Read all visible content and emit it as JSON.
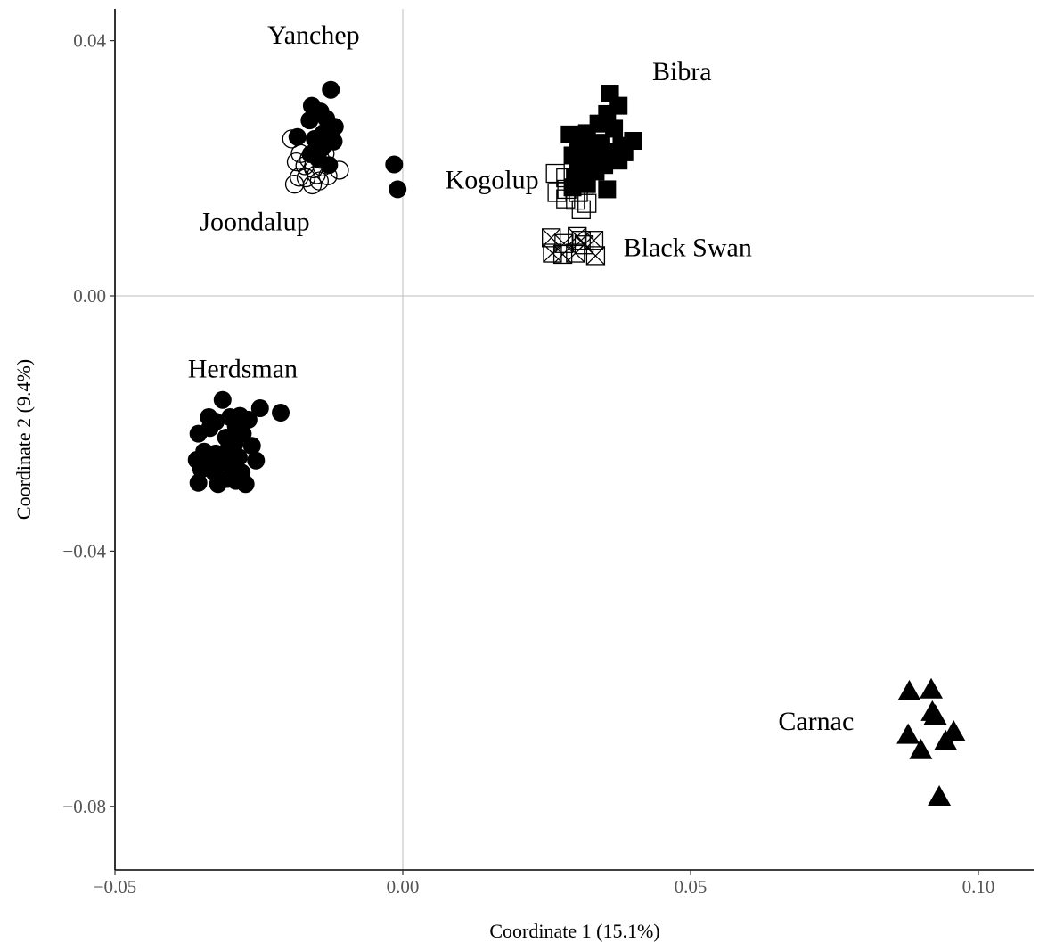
{
  "chart_data": {
    "type": "scatter",
    "title": "",
    "xlabel": "Coordinate 1 (15.1%)",
    "ylabel": "Coordinate 2 (9.4%)",
    "xlim": [
      -0.05,
      0.11
    ],
    "ylim": [
      -0.09,
      0.045
    ],
    "x_ticks": [
      -0.05,
      0.0,
      0.05,
      0.1
    ],
    "x_tick_labels": [
      "−0.05",
      "0.00",
      "0.05",
      "0.10"
    ],
    "y_ticks": [
      0.04,
      0.0,
      -0.04,
      -0.08
    ],
    "y_tick_labels": [
      "0.04",
      "0.00",
      "−0.04",
      "−0.08"
    ],
    "reference_lines": {
      "x": 0.0,
      "y": 0.0,
      "color": "#bdbdbd"
    },
    "grid": false,
    "legend": "none",
    "series": [
      {
        "name": "Yanchep",
        "marker": "filled-circle",
        "points": [
          [
            -0.0125,
            0.0323
          ],
          [
            -0.0158,
            0.0298
          ],
          [
            -0.0143,
            0.0289
          ],
          [
            -0.0162,
            0.0275
          ],
          [
            -0.0133,
            0.0278
          ],
          [
            -0.0118,
            0.0265
          ],
          [
            -0.0138,
            0.0255
          ],
          [
            -0.0153,
            0.0246
          ],
          [
            -0.0183,
            0.0249
          ],
          [
            -0.012,
            0.0242
          ],
          [
            -0.014,
            0.0232
          ],
          [
            -0.016,
            0.0222
          ],
          [
            -0.0128,
            0.0205
          ],
          [
            -0.0147,
            0.0215
          ],
          [
            -0.0015,
            0.0206
          ],
          [
            -0.0009,
            0.0167
          ]
        ]
      },
      {
        "name": "Joondalup",
        "marker": "open-circle",
        "points": [
          [
            -0.0193,
            0.0246
          ],
          [
            -0.0178,
            0.0223
          ],
          [
            -0.0163,
            0.0214
          ],
          [
            -0.015,
            0.0229
          ],
          [
            -0.0143,
            0.0214
          ],
          [
            -0.0185,
            0.021
          ],
          [
            -0.017,
            0.0204
          ],
          [
            -0.0155,
            0.0199
          ],
          [
            -0.014,
            0.0202
          ],
          [
            -0.011,
            0.0197
          ],
          [
            -0.018,
            0.0186
          ],
          [
            -0.0168,
            0.0185
          ],
          [
            -0.015,
            0.019
          ],
          [
            -0.013,
            0.0188
          ],
          [
            -0.0188,
            0.0175
          ],
          [
            -0.0157,
            0.0174
          ],
          [
            -0.0145,
            0.018
          ],
          [
            -0.0135,
            0.0223
          ]
        ]
      },
      {
        "name": "Herdsman",
        "marker": "filled-circle",
        "points": [
          [
            -0.0313,
            -0.0163
          ],
          [
            -0.0248,
            -0.0176
          ],
          [
            -0.0212,
            -0.0183
          ],
          [
            -0.0337,
            -0.019
          ],
          [
            -0.0325,
            -0.0197
          ],
          [
            -0.0283,
            -0.0188
          ],
          [
            -0.03,
            -0.019
          ],
          [
            -0.0268,
            -0.0194
          ],
          [
            -0.029,
            -0.0204
          ],
          [
            -0.0355,
            -0.0216
          ],
          [
            -0.0335,
            -0.0207
          ],
          [
            -0.0307,
            -0.0222
          ],
          [
            -0.0278,
            -0.0216
          ],
          [
            -0.0262,
            -0.0235
          ],
          [
            -0.0292,
            -0.0232
          ],
          [
            -0.0325,
            -0.0247
          ],
          [
            -0.0345,
            -0.0244
          ],
          [
            -0.0305,
            -0.0243
          ],
          [
            -0.0285,
            -0.0253
          ],
          [
            -0.0358,
            -0.0257
          ],
          [
            -0.0338,
            -0.0266
          ],
          [
            -0.0316,
            -0.0261
          ],
          [
            -0.0295,
            -0.0268
          ],
          [
            -0.0327,
            -0.0277
          ],
          [
            -0.035,
            -0.0272
          ],
          [
            -0.0305,
            -0.0287
          ],
          [
            -0.028,
            -0.0277
          ],
          [
            -0.0255,
            -0.0258
          ],
          [
            -0.0273,
            -0.0295
          ],
          [
            -0.0321,
            -0.0295
          ],
          [
            -0.0355,
            -0.0293
          ],
          [
            -0.029,
            -0.029
          ]
        ]
      },
      {
        "name": "Bibra",
        "marker": "filled-square",
        "points": [
          [
            0.036,
            0.0317
          ],
          [
            0.0375,
            0.0298
          ],
          [
            0.0355,
            0.0285
          ],
          [
            0.034,
            0.027
          ],
          [
            0.0367,
            0.0262
          ],
          [
            0.032,
            0.0255
          ],
          [
            0.029,
            0.0253
          ],
          [
            0.0305,
            0.0245
          ],
          [
            0.0345,
            0.024
          ],
          [
            0.038,
            0.0235
          ],
          [
            0.04,
            0.0243
          ],
          [
            0.033,
            0.023
          ],
          [
            0.031,
            0.0225
          ],
          [
            0.036,
            0.0225
          ],
          [
            0.0385,
            0.0225
          ],
          [
            0.0295,
            0.022
          ],
          [
            0.0325,
            0.0212
          ],
          [
            0.035,
            0.0205
          ],
          [
            0.0375,
            0.0212
          ],
          [
            0.0305,
            0.02
          ],
          [
            0.0335,
            0.0195
          ],
          [
            0.03,
            0.0185
          ],
          [
            0.032,
            0.0175
          ],
          [
            0.0295,
            0.017
          ],
          [
            0.0355,
            0.0167
          ]
        ]
      },
      {
        "name": "Kogolup",
        "marker": "open-square",
        "points": [
          [
            0.0265,
            0.0192
          ],
          [
            0.0283,
            0.0185
          ],
          [
            0.03,
            0.0186
          ],
          [
            0.0268,
            0.0162
          ],
          [
            0.0285,
            0.0167
          ],
          [
            0.0305,
            0.0162
          ],
          [
            0.0315,
            0.0173
          ],
          [
            0.0283,
            0.0152
          ],
          [
            0.03,
            0.015
          ],
          [
            0.032,
            0.0145
          ],
          [
            0.031,
            0.0135
          ]
        ]
      },
      {
        "name": "Black Swan",
        "marker": "crossed-square",
        "points": [
          [
            0.0258,
            0.0091
          ],
          [
            0.0303,
            0.0093
          ],
          [
            0.031,
            0.0087
          ],
          [
            0.0332,
            0.0087
          ],
          [
            0.028,
            0.0082
          ],
          [
            0.0315,
            0.008
          ],
          [
            0.026,
            0.0067
          ],
          [
            0.0278,
            0.0065
          ],
          [
            0.03,
            0.0067
          ],
          [
            0.0335,
            0.0063
          ]
        ]
      },
      {
        "name": "Carnac",
        "marker": "filled-triangle",
        "points": [
          [
            0.088,
            -0.062
          ],
          [
            0.0918,
            -0.0617
          ],
          [
            0.092,
            -0.0652
          ],
          [
            0.0925,
            -0.0658
          ],
          [
            0.0957,
            -0.0683
          ],
          [
            0.0878,
            -0.0688
          ],
          [
            0.0943,
            -0.0698
          ],
          [
            0.09,
            -0.0712
          ],
          [
            0.0932,
            -0.0785
          ]
        ]
      }
    ],
    "annotations": [
      {
        "text": "Yanchep",
        "x": -0.0155,
        "y": 0.0395
      },
      {
        "text": "Bibra",
        "x": 0.0485,
        "y": 0.0338
      },
      {
        "text": "Kogolup",
        "x": 0.0155,
        "y": 0.0168
      },
      {
        "text": "Joondalup",
        "x": -0.0257,
        "y": 0.0103
      },
      {
        "text": "Black Swan",
        "x": 0.0495,
        "y": 0.0062
      },
      {
        "text": "Herdsman",
        "x": -0.0278,
        "y": -0.0128
      },
      {
        "text": "Carnac",
        "x": 0.0718,
        "y": -0.068
      }
    ]
  }
}
